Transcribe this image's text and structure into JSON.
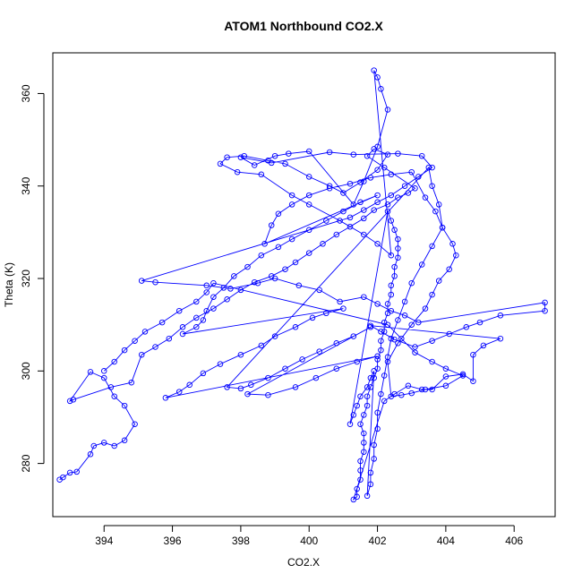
{
  "chart_data": {
    "type": "line",
    "title": "ATOM1 Northbound CO2.X",
    "xlabel": "CO2.X",
    "ylabel": "Theta (K)",
    "xlim": [
      392.5,
      407.2
    ],
    "ylim": [
      268.5,
      368.8
    ],
    "xticks": [
      394,
      396,
      398,
      400,
      402,
      404,
      406
    ],
    "yticks": [
      280,
      300,
      320,
      340,
      360
    ],
    "grid": false,
    "legend": "none",
    "color": "#0000ff",
    "marker": "open-circle",
    "series": [
      {
        "points": [
          [
            392.7,
            276.5
          ],
          [
            392.8,
            277.0
          ],
          [
            393.0,
            278.0
          ],
          [
            393.2,
            278.2
          ],
          [
            393.6,
            282.0
          ],
          [
            393.7,
            283.8
          ],
          [
            394.0,
            284.5
          ],
          [
            394.3,
            283.8
          ],
          [
            394.6,
            285.0
          ],
          [
            394.9,
            288.5
          ],
          [
            394.6,
            292.5
          ],
          [
            394.3,
            294.5
          ],
          [
            394.0,
            298.5
          ],
          [
            393.6,
            299.8
          ],
          [
            393.0,
            293.5
          ],
          [
            393.1,
            293.8
          ],
          [
            394.2,
            296.5
          ],
          [
            394.8,
            297.5
          ],
          [
            395.1,
            303.5
          ],
          [
            395.5,
            305.2
          ],
          [
            395.9,
            307.0
          ],
          [
            396.3,
            309.5
          ],
          [
            396.7,
            311.5
          ],
          [
            397.2,
            313.5
          ],
          [
            397.6,
            315.5
          ],
          [
            398.0,
            317.5
          ],
          [
            398.4,
            319.2
          ],
          [
            398.9,
            320.5
          ],
          [
            399.3,
            322.0
          ],
          [
            399.6,
            323.5
          ],
          [
            400.0,
            325.5
          ],
          [
            400.4,
            327.5
          ],
          [
            400.8,
            329.5
          ],
          [
            401.2,
            331.2
          ],
          [
            401.6,
            333.0
          ],
          [
            401.9,
            334.8
          ],
          [
            402.3,
            336.0
          ],
          [
            402.6,
            337.5
          ],
          [
            402.9,
            338.5
          ],
          [
            403.1,
            339.5
          ],
          [
            402.2,
            344.0
          ],
          [
            401.7,
            346.5
          ],
          [
            401.9,
            348.0
          ],
          [
            402.3,
            346.8
          ],
          [
            402.0,
            343.5
          ],
          [
            401.5,
            340.8
          ],
          [
            401.0,
            338.5
          ],
          [
            400.6,
            340.0
          ],
          [
            400.0,
            342.0
          ],
          [
            399.3,
            344.8
          ],
          [
            398.8,
            345.5
          ],
          [
            398.1,
            346.5
          ],
          [
            397.6,
            346.2
          ],
          [
            397.4,
            344.8
          ],
          [
            397.9,
            343.0
          ],
          [
            398.6,
            342.5
          ],
          [
            399.5,
            338.0
          ],
          [
            400.0,
            336.0
          ],
          [
            400.9,
            332.5
          ],
          [
            401.6,
            329.5
          ],
          [
            402.0,
            327.5
          ],
          [
            402.4,
            325.0
          ],
          [
            401.9,
            365.0
          ],
          [
            402.0,
            363.5
          ],
          [
            402.1,
            361.0
          ],
          [
            402.3,
            356.5
          ],
          [
            402.0,
            348.5
          ],
          [
            401.6,
            341.0
          ],
          [
            401.3,
            336.0
          ],
          [
            400.0,
            347.5
          ],
          [
            399.4,
            347.0
          ],
          [
            399.0,
            346.5
          ],
          [
            398.4,
            344.5
          ],
          [
            398.0,
            346.2
          ],
          [
            398.9,
            345.0
          ],
          [
            400.6,
            347.3
          ],
          [
            401.3,
            346.8
          ],
          [
            402.6,
            347.0
          ],
          [
            403.3,
            346.5
          ],
          [
            403.6,
            344.0
          ],
          [
            403.2,
            342.0
          ],
          [
            402.8,
            340.0
          ],
          [
            402.4,
            338.0
          ],
          [
            402.0,
            336.5
          ],
          [
            401.6,
            334.8
          ],
          [
            401.2,
            333.2
          ],
          [
            395.1,
            319.5
          ],
          [
            395.5,
            319.2
          ],
          [
            397.0,
            318.5
          ],
          [
            397.7,
            317.8
          ],
          [
            398.5,
            319.0
          ],
          [
            399.0,
            320.0
          ],
          [
            399.7,
            318.5
          ],
          [
            400.3,
            317.5
          ],
          [
            400.9,
            315.0
          ],
          [
            401.6,
            316.0
          ],
          [
            402.0,
            314.5
          ],
          [
            402.4,
            313.0
          ],
          [
            402.8,
            312.0
          ],
          [
            403.2,
            310.5
          ],
          [
            406.9,
            314.8
          ],
          [
            406.9,
            313.0
          ],
          [
            405.6,
            312.0
          ],
          [
            405.0,
            310.5
          ],
          [
            404.6,
            309.5
          ],
          [
            404.1,
            308.0
          ],
          [
            403.6,
            306.5
          ],
          [
            403.1,
            305.2
          ],
          [
            402.5,
            306.8
          ],
          [
            402.1,
            308.5
          ],
          [
            401.8,
            309.8
          ],
          [
            405.6,
            307.0
          ],
          [
            405.1,
            305.5
          ],
          [
            404.8,
            303.5
          ],
          [
            404.8,
            297.8
          ],
          [
            404.5,
            299.3
          ],
          [
            404.0,
            298.8
          ],
          [
            403.6,
            296.0
          ],
          [
            403.3,
            296.0
          ],
          [
            402.9,
            296.8
          ],
          [
            402.5,
            295.0
          ],
          [
            402.2,
            293.5
          ],
          [
            401.3,
            272.2
          ],
          [
            401.4,
            272.8
          ],
          [
            401.4,
            274.5
          ],
          [
            401.5,
            276.5
          ],
          [
            401.5,
            278.5
          ],
          [
            401.5,
            280.5
          ],
          [
            401.6,
            282.5
          ],
          [
            401.6,
            284.5
          ],
          [
            401.6,
            286.5
          ],
          [
            401.5,
            288.5
          ],
          [
            401.6,
            290.5
          ],
          [
            401.7,
            292.5
          ],
          [
            401.7,
            294.5
          ],
          [
            401.8,
            296.5
          ],
          [
            401.9,
            298.5
          ],
          [
            402.0,
            300.5
          ],
          [
            402.0,
            302.5
          ],
          [
            402.1,
            304.5
          ],
          [
            402.1,
            306.5
          ],
          [
            402.2,
            308.5
          ],
          [
            402.2,
            310.5
          ],
          [
            402.3,
            312.5
          ],
          [
            402.3,
            314.5
          ],
          [
            402.4,
            316.5
          ],
          [
            402.4,
            318.5
          ],
          [
            402.5,
            320.5
          ],
          [
            402.5,
            322.5
          ],
          [
            402.6,
            324.5
          ],
          [
            402.6,
            326.5
          ],
          [
            402.6,
            328.5
          ],
          [
            402.5,
            330.5
          ],
          [
            402.4,
            332.5
          ],
          [
            402.3,
            334.5
          ],
          [
            401.2,
            288.5
          ],
          [
            401.3,
            290.5
          ],
          [
            401.4,
            292.5
          ],
          [
            401.5,
            294.5
          ],
          [
            401.7,
            296.5
          ],
          [
            401.8,
            298.5
          ],
          [
            401.9,
            300.0
          ],
          [
            401.7,
            273.0
          ],
          [
            401.8,
            275.5
          ],
          [
            401.8,
            278.0
          ],
          [
            401.9,
            281.0
          ],
          [
            401.9,
            284.0
          ],
          [
            402.0,
            287.5
          ],
          [
            402.0,
            291.0
          ],
          [
            402.1,
            295.0
          ],
          [
            402.2,
            299.0
          ],
          [
            402.3,
            303.0
          ],
          [
            402.4,
            307.0
          ],
          [
            402.6,
            311.0
          ],
          [
            402.8,
            315.0
          ],
          [
            403.0,
            319.0
          ],
          [
            403.3,
            323.0
          ],
          [
            403.6,
            327.0
          ],
          [
            403.9,
            331.0
          ],
          [
            403.8,
            336.0
          ],
          [
            403.6,
            340.0
          ],
          [
            403.5,
            344.0
          ],
          [
            397.6,
            296.5
          ],
          [
            398.0,
            296.2
          ],
          [
            398.3,
            297.0
          ],
          [
            398.8,
            298.5
          ],
          [
            399.3,
            300.5
          ],
          [
            399.8,
            302.5
          ],
          [
            400.3,
            304.2
          ],
          [
            400.8,
            306.0
          ],
          [
            401.3,
            307.5
          ],
          [
            401.8,
            309.5
          ],
          [
            398.2,
            295.0
          ],
          [
            398.8,
            294.8
          ],
          [
            399.6,
            296.5
          ],
          [
            400.2,
            298.5
          ],
          [
            400.8,
            300.5
          ],
          [
            401.4,
            302.0
          ],
          [
            402.0,
            303.2
          ],
          [
            395.8,
            294.2
          ],
          [
            396.2,
            295.5
          ],
          [
            396.5,
            297.0
          ],
          [
            396.9,
            299.5
          ],
          [
            397.4,
            301.5
          ],
          [
            398.0,
            303.5
          ],
          [
            398.6,
            305.5
          ],
          [
            399.0,
            307.5
          ],
          [
            399.6,
            309.5
          ],
          [
            400.1,
            311.5
          ],
          [
            400.5,
            312.5
          ],
          [
            401.0,
            313.5
          ],
          [
            396.3,
            308.0
          ],
          [
            396.7,
            309.5
          ],
          [
            396.9,
            311.0
          ],
          [
            397.0,
            313.0
          ],
          [
            397.2,
            316.0
          ],
          [
            397.5,
            318.0
          ],
          [
            397.8,
            320.5
          ],
          [
            398.2,
            322.5
          ],
          [
            398.6,
            325.0
          ],
          [
            399.1,
            326.8
          ],
          [
            399.5,
            328.5
          ],
          [
            400.0,
            330.5
          ],
          [
            400.5,
            332.5
          ],
          [
            401.0,
            334.5
          ],
          [
            401.5,
            336.5
          ],
          [
            402.0,
            338.0
          ],
          [
            398.7,
            327.5
          ],
          [
            398.9,
            331.5
          ],
          [
            399.1,
            334.0
          ],
          [
            399.5,
            336.0
          ],
          [
            400.0,
            338.0
          ],
          [
            400.6,
            339.5
          ],
          [
            401.2,
            340.5
          ],
          [
            401.8,
            341.8
          ],
          [
            402.4,
            342.5
          ],
          [
            403.0,
            343.0
          ],
          [
            403.4,
            337.5
          ],
          [
            403.7,
            334.5
          ],
          [
            403.9,
            331.0
          ],
          [
            404.2,
            327.5
          ],
          [
            404.3,
            325.0
          ],
          [
            404.1,
            322.0
          ],
          [
            403.8,
            319.5
          ],
          [
            403.6,
            316.5
          ],
          [
            403.4,
            313.5
          ],
          [
            403.0,
            310.0
          ],
          [
            402.6,
            306.0
          ],
          [
            402.3,
            302.0
          ],
          [
            402.4,
            294.5
          ],
          [
            402.7,
            294.8
          ],
          [
            403.0,
            295.2
          ],
          [
            403.4,
            296.0
          ],
          [
            404.0,
            296.8
          ],
          [
            404.5,
            299.0
          ],
          [
            404.0,
            300.5
          ],
          [
            403.6,
            302.0
          ],
          [
            403.1,
            304.0
          ],
          [
            402.7,
            307.0
          ],
          [
            402.3,
            310.0
          ],
          [
            397.2,
            319.0
          ],
          [
            397.0,
            317.0
          ],
          [
            396.7,
            315.0
          ],
          [
            396.2,
            313.0
          ],
          [
            395.7,
            310.5
          ],
          [
            395.2,
            308.5
          ],
          [
            394.9,
            306.5
          ],
          [
            394.6,
            304.5
          ],
          [
            394.3,
            302.0
          ],
          [
            394.0,
            300.0
          ]
        ]
      }
    ]
  }
}
